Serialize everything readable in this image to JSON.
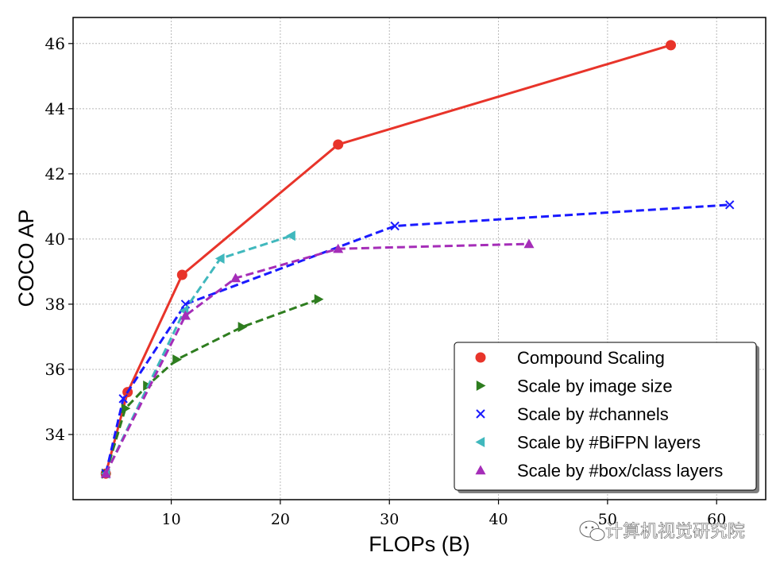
{
  "chart_data": {
    "type": "line",
    "title": "",
    "xlabel": "FLOPs (B)",
    "ylabel": "COCO AP",
    "xlim": [
      1,
      64.5
    ],
    "ylim": [
      32,
      46.8
    ],
    "xticks": [
      10,
      20,
      30,
      40,
      50,
      60
    ],
    "yticks": [
      34,
      36,
      38,
      40,
      42,
      44,
      46
    ],
    "grid": true,
    "legend_position": "lower-right",
    "series": [
      {
        "name": "Compound Scaling",
        "color": "#e8342a",
        "style": "solid",
        "marker": "circle",
        "x": [
          4.0,
          6.0,
          11.0,
          25.3,
          55.8
        ],
        "y": [
          32.8,
          35.3,
          38.9,
          42.9,
          45.95
        ]
      },
      {
        "name": "Scale by image size",
        "color": "#2e7d1f",
        "style": "dashed",
        "marker": "triangle-right",
        "x": [
          4.0,
          5.8,
          7.8,
          10.5,
          16.5,
          23.5
        ],
        "y": [
          32.8,
          34.8,
          35.5,
          36.3,
          37.3,
          38.15
        ]
      },
      {
        "name": "Scale by #channels",
        "color": "#1a1aff",
        "style": "dashed",
        "marker": "x",
        "x": [
          4.0,
          5.6,
          11.3,
          30.5,
          61.2
        ],
        "y": [
          32.8,
          35.1,
          38.0,
          40.4,
          41.05
        ]
      },
      {
        "name": "Scale by #BiFPN layers",
        "color": "#40b8bd",
        "style": "dashed",
        "marker": "triangle-left",
        "x": [
          4.0,
          11.2,
          14.5,
          21.0
        ],
        "y": [
          32.8,
          37.8,
          39.4,
          40.1
        ]
      },
      {
        "name": "Scale by #box/class layers",
        "color": "#a52db8",
        "style": "dashed",
        "marker": "triangle-up",
        "x": [
          4.0,
          11.3,
          15.9,
          25.3,
          42.8
        ],
        "y": [
          32.8,
          37.65,
          38.8,
          39.7,
          39.85
        ]
      }
    ]
  },
  "watermark": {
    "text": "计算机视觉研究院"
  }
}
